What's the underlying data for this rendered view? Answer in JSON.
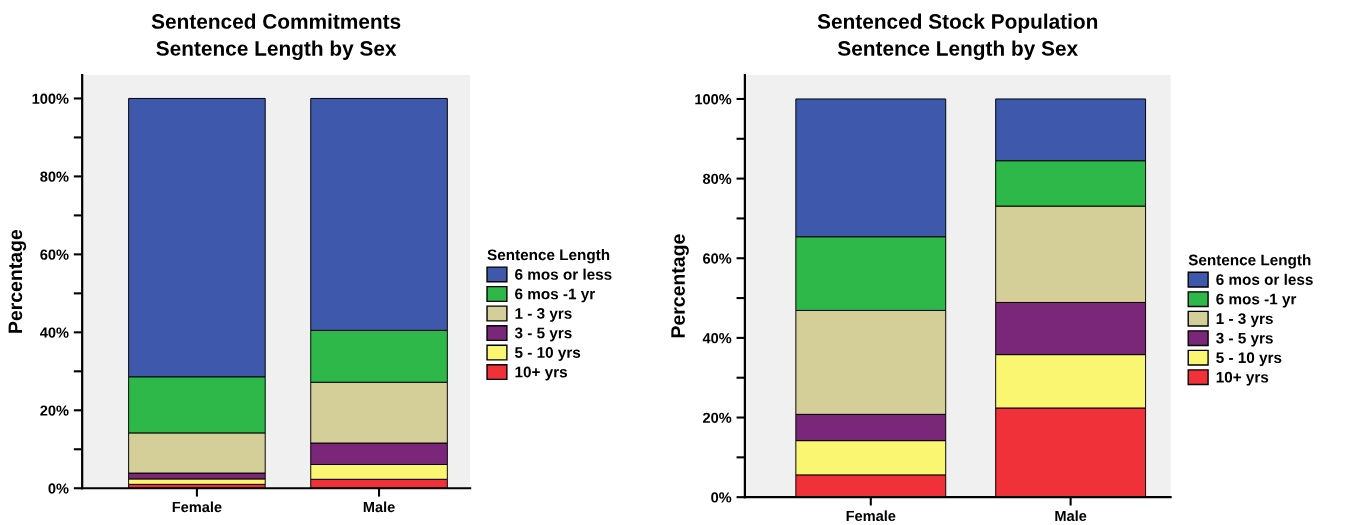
{
  "chart_data": [
    {
      "type": "bar",
      "title": "Sentenced Commitments\nSentence Length by Sex",
      "ylabel": "Percentage",
      "legend_title": "Sentence Length",
      "categories": [
        "Female",
        "Male"
      ],
      "stacked": true,
      "legend": "right",
      "grid": false,
      "ylim": [
        0,
        106
      ],
      "yticks": [
        {
          "value": 0,
          "label": "0%"
        },
        {
          "value": 10,
          "label": null
        },
        {
          "value": 20,
          "label": "20%"
        },
        {
          "value": 30,
          "label": null
        },
        {
          "value": 40,
          "label": "40%"
        },
        {
          "value": 50,
          "label": null
        },
        {
          "value": 60,
          "label": "60%"
        },
        {
          "value": 70,
          "label": null
        },
        {
          "value": 80,
          "label": "80%"
        },
        {
          "value": 90,
          "label": null
        },
        {
          "value": 100,
          "label": "100%"
        }
      ],
      "series": [
        {
          "name": "10+ yrs",
          "color": "#f0313a",
          "values": [
            1.0,
            2.3
          ]
        },
        {
          "name": "5 - 10 yrs",
          "color": "#faf672",
          "values": [
            1.4,
            3.8
          ]
        },
        {
          "name": "3 - 5 yrs",
          "color": "#7b2779",
          "values": [
            1.5,
            5.5
          ]
        },
        {
          "name": "1 - 3 yrs",
          "color": "#d4ce98",
          "values": [
            10.3,
            15.6
          ]
        },
        {
          "name": "6 mos -1 yr",
          "color": "#2fb84a",
          "values": [
            14.4,
            13.3
          ]
        },
        {
          "name": "6 mos or less",
          "color": "#3e58ac",
          "values": [
            71.4,
            59.5
          ]
        }
      ]
    },
    {
      "type": "bar",
      "title": "Sentenced Stock Population\nSentence Length by Sex",
      "ylabel": "Percentage",
      "legend_title": "Sentence Length",
      "categories": [
        "Female",
        "Male"
      ],
      "stacked": true,
      "legend": "right",
      "grid": false,
      "ylim": [
        0,
        106
      ],
      "yticks": [
        {
          "value": 0,
          "label": "0%"
        },
        {
          "value": 10,
          "label": null
        },
        {
          "value": 20,
          "label": "20%"
        },
        {
          "value": 30,
          "label": null
        },
        {
          "value": 40,
          "label": "40%"
        },
        {
          "value": 50,
          "label": null
        },
        {
          "value": 60,
          "label": "60%"
        },
        {
          "value": 70,
          "label": null
        },
        {
          "value": 80,
          "label": "80%"
        },
        {
          "value": 90,
          "label": null
        },
        {
          "value": 100,
          "label": "100%"
        }
      ],
      "series": [
        {
          "name": "10+ yrs",
          "color": "#f0313a",
          "values": [
            5.6,
            22.4
          ]
        },
        {
          "name": "5 - 10 yrs",
          "color": "#faf672",
          "values": [
            8.6,
            13.4
          ]
        },
        {
          "name": "3 - 5 yrs",
          "color": "#7b2779",
          "values": [
            6.6,
            13.1
          ]
        },
        {
          "name": "1 - 3 yrs",
          "color": "#d4ce98",
          "values": [
            26.1,
            24.2
          ]
        },
        {
          "name": "6 mos -1 yr",
          "color": "#2fb84a",
          "values": [
            18.5,
            11.4
          ]
        },
        {
          "name": "6 mos or less",
          "color": "#3e58ac",
          "values": [
            34.6,
            15.5
          ]
        }
      ]
    }
  ]
}
